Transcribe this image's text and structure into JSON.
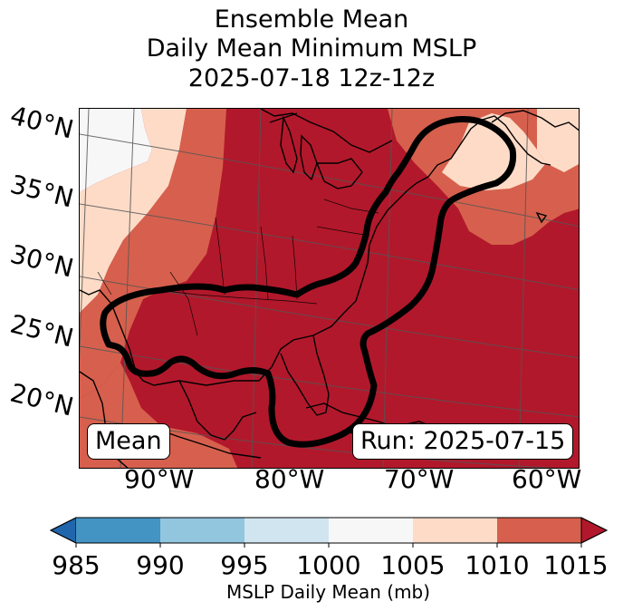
{
  "title": {
    "line1": "Ensemble Mean",
    "line2": "Daily Mean Minimum MSLP",
    "line3": "2025-07-18 12z-12z"
  },
  "map": {
    "lat_labels": [
      "40°N",
      "35°N",
      "30°N",
      "25°N",
      "20°N"
    ],
    "lon_labels": [
      "90°W",
      "80°W",
      "70°W",
      "60°W"
    ],
    "annotation_left": "Mean",
    "annotation_right": "Run: 2025-07-15"
  },
  "colorbar": {
    "ticks": [
      "985",
      "990",
      "995",
      "1000",
      "1005",
      "1010",
      "1015"
    ],
    "label": "MSLP Daily Mean (mb)",
    "colors": [
      "#2166ac",
      "#4393c3",
      "#92c5de",
      "#d1e5f0",
      "#f7f7f7",
      "#fddbc7",
      "#d6604d",
      "#b2182b"
    ]
  }
}
